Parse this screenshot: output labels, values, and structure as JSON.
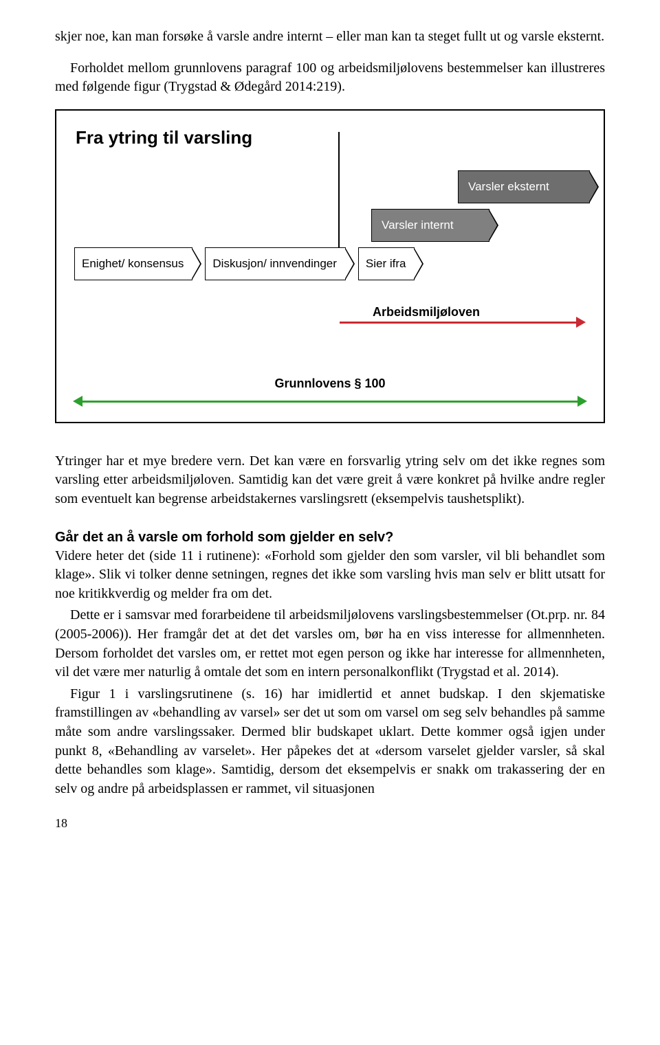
{
  "intro": {
    "p1": "skjer noe, kan man forsøke å varsle andre internt – eller man kan ta steget fullt ut og varsle eksternt.",
    "p2": "Forholdet mellom grunnlovens paragraf 100 og arbeidsmiljølovens bestemmelser kan illustreres med følgende figur (Trygstad & Ødegård 2014:219)."
  },
  "diagram": {
    "title": "Fra ytring til varsling",
    "chevrons": {
      "c1": "Enighet/ konsensus",
      "c2": "Diskusjon/ innvendinger",
      "c3": "Sier ifra",
      "internt": "Varsler internt",
      "eksternt": "Varsler eksternt"
    },
    "aml_label": "Arbeidsmiljøloven",
    "gr_label": "Grunnlovens § 100",
    "colors": {
      "aml_arrow": "#c92a33",
      "gr_arrow": "#2ca02c",
      "chev_mid": "#808080",
      "chev_dark": "#6e6e6e",
      "border": "#000000",
      "bg": "#ffffff"
    }
  },
  "body": {
    "p3": "Ytringer har et mye bredere vern. Det kan være en forsvarlig ytring selv om det ikke regnes som varsling etter arbeidsmiljøloven. Samtidig kan det være greit å være konkret på hvilke andre regler som eventuelt kan begrense arbeidstakernes varslingsrett (eksempelvis taushetsplikt).",
    "heading": "Går det an å varsle om forhold som gjelder en selv?",
    "p4": "Videre heter det (side 11 i rutinene): «Forhold som gjelder den som varsler, vil bli behandlet som klage». Slik vi tolker denne setningen, regnes det ikke som varsling hvis man selv er blitt utsatt for noe kritikkverdig og melder fra om det.",
    "p5": "Dette er i samsvar med forarbeidene til arbeidsmiljølovens varslingsbestemmelser (Ot.prp. nr. 84 (2005-2006)). Her framgår det at det det varsles om, bør ha en viss interesse for allmennheten. Dersom forholdet det varsles om, er rettet mot egen person og ikke har interesse for allmennheten, vil det være mer naturlig å omtale det som en intern personalkonflikt (Trygstad et al. 2014).",
    "p6": "Figur 1 i varslingsrutinene (s. 16) har imidlertid et annet budskap. I den skjematiske framstillingen av «behandling av varsel» ser det ut som om varsel om seg selv behandles på samme måte som andre varslingssaker. Dermed blir budskapet uklart. Dette kommer også igjen under punkt 8, «Behandling av varselet». Her påpekes det at «dersom varselet gjelder varsler, så skal dette behandles som klage». Samtidig, dersom det eksempelvis er snakk om trakassering der en selv og andre på arbeidsplassen er rammet, vil situasjonen"
  },
  "page_number": "18"
}
